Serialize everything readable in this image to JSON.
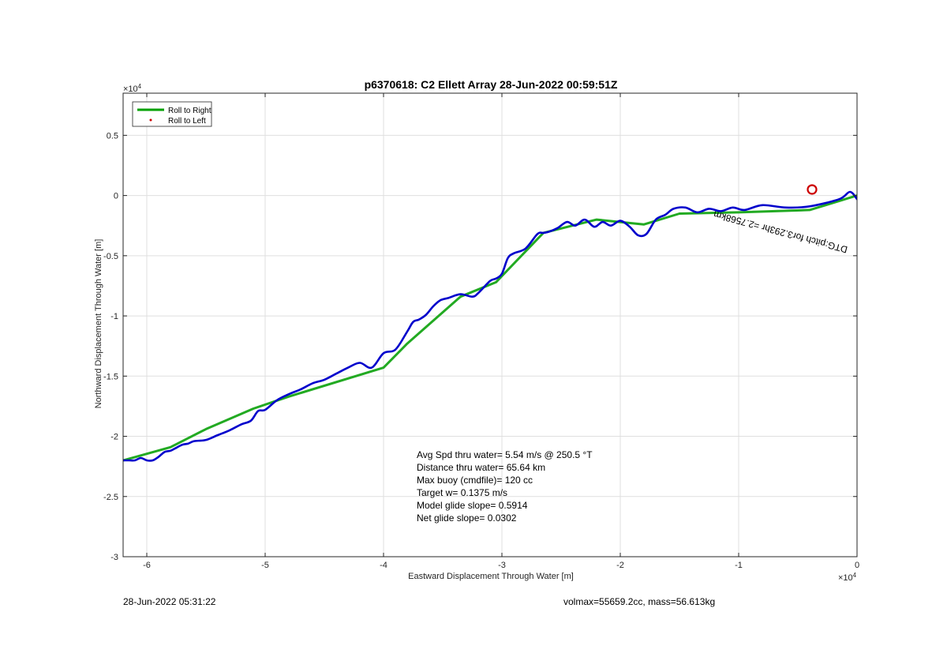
{
  "chart_data": {
    "type": "line",
    "title": "p6370618: C2 Ellett Array 28-Jun-2022 00:59:51Z",
    "xlabel": "Eastward Displacement Through Water [m]",
    "ylabel": "Northward Displacement Through Water [m]",
    "xlim": [
      -62000,
      0
    ],
    "ylim": [
      -30000,
      8500
    ],
    "x_ticks": [
      -60000,
      -50000,
      -40000,
      -30000,
      -20000,
      -10000,
      0
    ],
    "x_tick_labels": [
      "-6",
      "-5",
      "-4",
      "-3",
      "-2",
      "-1",
      "0"
    ],
    "y_ticks": [
      5000,
      0,
      -5000,
      -10000,
      -15000,
      -20000,
      -25000,
      -30000
    ],
    "y_tick_labels": [
      "0.5",
      "0",
      "-0.5",
      "-1",
      "-1.5",
      "-2",
      "-2.5",
      "-3"
    ],
    "x_exponent": "×10",
    "x_exponent_power": "4",
    "y_exponent": "×10",
    "y_exponent_power": "4",
    "grid": true,
    "legend_position": "top-left",
    "legend": [
      {
        "label": "Roll to Right",
        "color": "#00a000",
        "style": "line"
      },
      {
        "label": "Roll to Left",
        "color": "#cc0000",
        "style": "dot"
      }
    ],
    "series": [
      {
        "name": "Roll to Right",
        "color": "#22aa22",
        "x": [
          0,
          -4000,
          -10000,
          -15000,
          -18000,
          -22000,
          -26500,
          -30500,
          -33500,
          -38000,
          -40000,
          -48000,
          -51000,
          -55000,
          -58000,
          -62000
        ],
        "y": [
          0,
          -1200,
          -1400,
          -1500,
          -2400,
          -2000,
          -3100,
          -7200,
          -8400,
          -12300,
          -14300,
          -16700,
          -17700,
          -19400,
          -20900,
          -22000
        ]
      },
      {
        "name": "",
        "color": "#0000cc",
        "x": [
          0,
          -600,
          -1500,
          -4000,
          -6000,
          -8000,
          -9500,
          -10500,
          -11500,
          -12500,
          -13500,
          -14500,
          -15500,
          -16200,
          -17000,
          -17800,
          -18500,
          -19200,
          -20000,
          -20800,
          -21500,
          -22200,
          -23000,
          -23800,
          -24500,
          -25300,
          -26000,
          -26500,
          -27000,
          -28000,
          -29000,
          -29500,
          -30000,
          -30500,
          -31000,
          -32000,
          -32500,
          -33500,
          -34500,
          -35200,
          -35800,
          -36400,
          -37000,
          -37500,
          -38000,
          -39000,
          -40000,
          -41000,
          -42000,
          -43000,
          -44000,
          -45000,
          -46000,
          -47000,
          -48000,
          -49000,
          -50000,
          -50600,
          -51200,
          -52000,
          -53000,
          -54000,
          -55000,
          -56000,
          -56500,
          -57000,
          -57600,
          -58000,
          -58500,
          -59000,
          -59500,
          -60000,
          -60500,
          -61000,
          -61500,
          -62000
        ],
        "y": [
          -300,
          300,
          -300,
          -900,
          -1000,
          -800,
          -1200,
          -1000,
          -1300,
          -1100,
          -1400,
          -1000,
          -1100,
          -1600,
          -2000,
          -3200,
          -3300,
          -2600,
          -2100,
          -2500,
          -2200,
          -2600,
          -2000,
          -2500,
          -2200,
          -2700,
          -3000,
          -3100,
          -3200,
          -4400,
          -4800,
          -5200,
          -6500,
          -6900,
          -7100,
          -8100,
          -8400,
          -8200,
          -8500,
          -8700,
          -9200,
          -9900,
          -10300,
          -10500,
          -11300,
          -12800,
          -13100,
          -14300,
          -13900,
          -14300,
          -14800,
          -15300,
          -15600,
          -16100,
          -16500,
          -17000,
          -17800,
          -17900,
          -18700,
          -19000,
          -19500,
          -19900,
          -20300,
          -20400,
          -20600,
          -20700,
          -21000,
          -21200,
          -21300,
          -21700,
          -22000,
          -22000,
          -21800,
          -22000,
          -22000,
          -22000
        ]
      }
    ],
    "markers": [
      {
        "shape": "circle",
        "color": "#cc0000",
        "x": -3800,
        "y": 500
      }
    ],
    "annotation": "DTG:pitch for3.293hr =2.7568km",
    "annotation_rotation_deg": 195,
    "text_block": [
      "Avg Spd thru water=  5.54 m/s @ 250.5 °T",
      "Distance thru water= 65.64 km",
      "Max buoy (cmdfile)= 120 cc",
      "Target w= 0.1375 m/s",
      "Model glide slope= 0.5914",
      "Net glide slope= 0.0302"
    ]
  },
  "footer": {
    "timestamp": "28-Jun-2022 05:31:22",
    "summary": "volmax=55659.2cc, mass=56.613kg"
  }
}
